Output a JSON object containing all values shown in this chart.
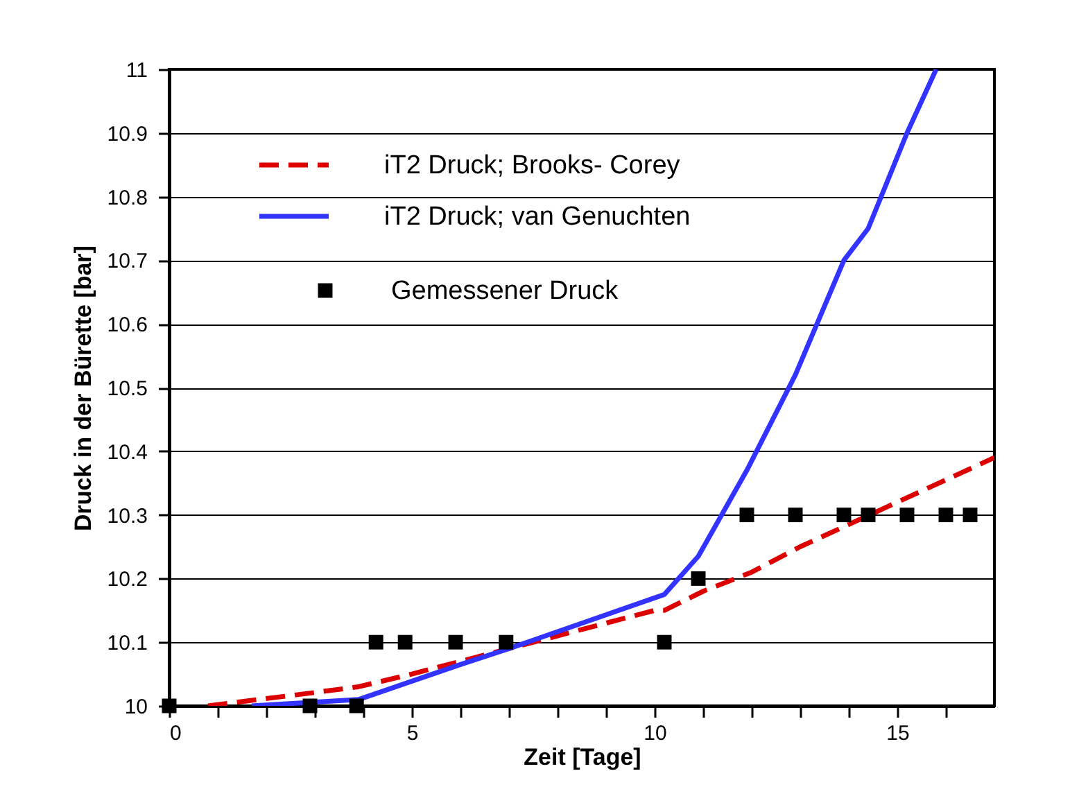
{
  "chart_data": {
    "type": "line",
    "xlabel": "Zeit [Tage]",
    "ylabel": "Druck in der Bürette [bar]",
    "xlim": [
      0,
      17
    ],
    "ylim": [
      10,
      11
    ],
    "xticks": [
      0,
      {
        "value": 1,
        "label": null
      },
      {
        "value": 2,
        "label": null
      },
      {
        "value": 3,
        "label": null
      },
      {
        "value": 4,
        "label": null
      },
      5,
      {
        "value": 6,
        "label": null
      },
      {
        "value": 7,
        "label": null
      },
      {
        "value": 8,
        "label": null
      },
      {
        "value": 9,
        "label": null
      },
      10,
      {
        "value": 11,
        "label": null
      },
      {
        "value": 12,
        "label": null
      },
      {
        "value": 13,
        "label": null
      },
      {
        "value": 14,
        "label": null
      },
      15,
      {
        "value": 16,
        "label": null
      }
    ],
    "yticks": [
      10,
      10.1,
      10.2,
      10.3,
      10.4,
      10.5,
      10.6,
      10.7,
      10.8,
      10.9,
      11
    ],
    "grid": "y",
    "legend": "top left",
    "series": [
      {
        "name": "iT2 Druck; Brooks- Corey",
        "type": "line",
        "line_style": "dashed",
        "marker": "none",
        "color": "#dd0000",
        "x": [
          0.8,
          2.9,
          3.9,
          5,
          6,
          7,
          8,
          9,
          10,
          10.2,
          11,
          12,
          13,
          14,
          15,
          16,
          17
        ],
        "values": [
          10.0,
          10.02,
          10.03,
          10.05,
          10.07,
          10.09,
          10.11,
          10.13,
          10.15,
          10.15,
          10.18,
          10.21,
          10.25,
          10.285,
          10.32,
          10.355,
          10.39
        ]
      },
      {
        "name": "iT2 Druck; van Genuchten",
        "type": "line",
        "line_style": "solid",
        "marker": "none",
        "color": "#3333ff",
        "x": [
          1.7,
          3.9,
          6.0,
          7.0,
          10.2,
          10.9,
          11.9,
          12.9,
          13.9,
          14.4,
          15.2,
          15.8
        ],
        "values": [
          10.0,
          10.01,
          10.065,
          10.09,
          10.175,
          10.235,
          10.37,
          10.52,
          10.7,
          10.75,
          10.9,
          11.0
        ]
      },
      {
        "name": "Gemessener Druck",
        "type": "scatter",
        "marker": "square",
        "color": "#000000",
        "x": [
          0,
          2.9,
          3.86,
          4.26,
          4.86,
          5.9,
          6.94,
          10.2,
          10.9,
          11.9,
          12.9,
          13.9,
          14.4,
          15.2,
          16.0,
          16.5
        ],
        "values": [
          10,
          10,
          10,
          10.1,
          10.1,
          10.1,
          10.1,
          10.1,
          10.2,
          10.3,
          10.3,
          10.3,
          10.3,
          10.3,
          10.3,
          10.3
        ]
      }
    ]
  }
}
